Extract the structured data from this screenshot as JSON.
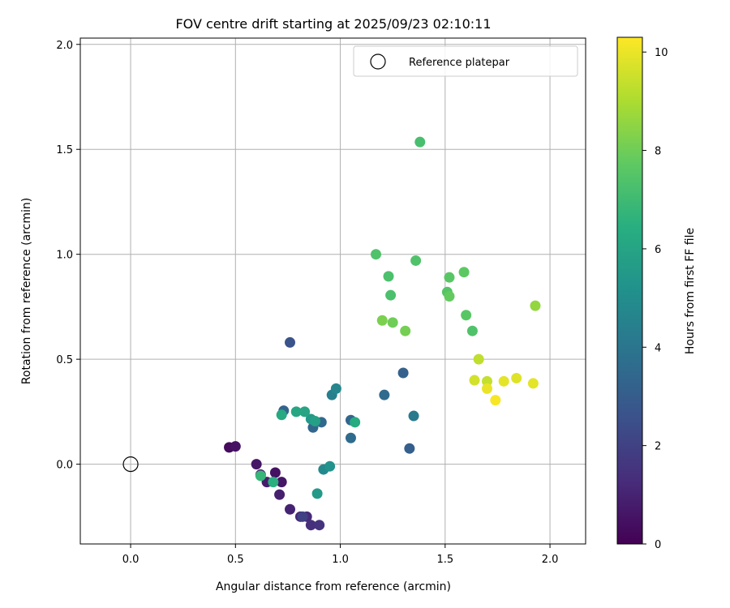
{
  "chart_data": {
    "type": "scatter",
    "title": "FOV centre drift starting at 2025/09/23 02:10:11",
    "xlabel": "Angular distance from reference (arcmin)",
    "ylabel": "Rotation from reference (arcmin)",
    "xlim": [
      -0.24,
      2.17
    ],
    "ylim": [
      -0.38,
      2.03
    ],
    "xticks": [
      0.0,
      0.5,
      1.0,
      1.5,
      2.0
    ],
    "xtick_labels": [
      "0.0",
      "0.5",
      "1.0",
      "1.5",
      "2.0"
    ],
    "yticks": [
      0.0,
      0.5,
      1.0,
      1.5,
      2.0
    ],
    "ytick_labels": [
      "0.0",
      "0.5",
      "1.0",
      "1.5",
      "2.0"
    ],
    "grid": true,
    "legend": {
      "position": "top-right",
      "entries": [
        "Reference platepar"
      ]
    },
    "reference_point": {
      "x": 0.0,
      "y": 0.0,
      "label": "Reference platepar",
      "marker": "open-circle"
    },
    "colorbar": {
      "label": "Hours from first FF file",
      "colormap": "viridis",
      "range": [
        0,
        10.3
      ],
      "ticks": [
        0,
        2,
        4,
        6,
        8,
        10
      ],
      "tick_labels": [
        "0",
        "2",
        "4",
        "6",
        "8",
        "10"
      ]
    },
    "points": [
      {
        "x": 0.47,
        "y": 0.08,
        "h": 0.3
      },
      {
        "x": 0.5,
        "y": 0.085,
        "h": 0.5
      },
      {
        "x": 0.6,
        "y": 0.0,
        "h": 0.6
      },
      {
        "x": 0.62,
        "y": -0.05,
        "h": 0.7
      },
      {
        "x": 0.65,
        "y": -0.085,
        "h": 0.8
      },
      {
        "x": 0.69,
        "y": -0.04,
        "h": 0.5
      },
      {
        "x": 0.72,
        "y": -0.085,
        "h": 0.6
      },
      {
        "x": 0.71,
        "y": -0.145,
        "h": 0.9
      },
      {
        "x": 0.76,
        "y": -0.215,
        "h": 1.0
      },
      {
        "x": 0.81,
        "y": -0.25,
        "h": 1.1
      },
      {
        "x": 0.84,
        "y": -0.25,
        "h": 1.2
      },
      {
        "x": 0.86,
        "y": -0.29,
        "h": 1.4
      },
      {
        "x": 0.9,
        "y": -0.29,
        "h": 1.5
      },
      {
        "x": 0.82,
        "y": -0.25,
        "h": 2.0
      },
      {
        "x": 0.76,
        "y": 0.58,
        "h": 2.6
      },
      {
        "x": 0.73,
        "y": 0.255,
        "h": 3.3
      },
      {
        "x": 0.87,
        "y": 0.175,
        "h": 3.4
      },
      {
        "x": 0.91,
        "y": 0.2,
        "h": 3.5
      },
      {
        "x": 1.05,
        "y": 0.21,
        "h": 3.4
      },
      {
        "x": 1.05,
        "y": 0.125,
        "h": 3.6
      },
      {
        "x": 1.21,
        "y": 0.33,
        "h": 3.6
      },
      {
        "x": 1.3,
        "y": 0.435,
        "h": 3.2
      },
      {
        "x": 1.33,
        "y": 0.075,
        "h": 3.1
      },
      {
        "x": 1.35,
        "y": 0.23,
        "h": 4.2
      },
      {
        "x": 0.96,
        "y": 0.33,
        "h": 4.4
      },
      {
        "x": 0.98,
        "y": 0.36,
        "h": 4.7
      },
      {
        "x": 0.92,
        "y": -0.025,
        "h": 4.8
      },
      {
        "x": 0.95,
        "y": -0.01,
        "h": 5.2
      },
      {
        "x": 0.89,
        "y": -0.14,
        "h": 5.5
      },
      {
        "x": 0.86,
        "y": 0.215,
        "h": 5.5
      },
      {
        "x": 0.88,
        "y": 0.205,
        "h": 5.8
      },
      {
        "x": 0.83,
        "y": 0.25,
        "h": 6.0
      },
      {
        "x": 0.79,
        "y": 0.25,
        "h": 6.1
      },
      {
        "x": 0.72,
        "y": 0.235,
        "h": 6.2
      },
      {
        "x": 1.07,
        "y": 0.2,
        "h": 6.3
      },
      {
        "x": 0.68,
        "y": -0.085,
        "h": 6.5
      },
      {
        "x": 0.62,
        "y": -0.055,
        "h": 6.8
      },
      {
        "x": 1.38,
        "y": 1.535,
        "h": 7.2
      },
      {
        "x": 1.17,
        "y": 1.0,
        "h": 7.4
      },
      {
        "x": 1.23,
        "y": 0.895,
        "h": 7.3
      },
      {
        "x": 1.36,
        "y": 0.97,
        "h": 7.4
      },
      {
        "x": 1.24,
        "y": 0.805,
        "h": 7.3
      },
      {
        "x": 1.52,
        "y": 0.89,
        "h": 7.6
      },
      {
        "x": 1.59,
        "y": 0.915,
        "h": 7.7
      },
      {
        "x": 1.51,
        "y": 0.82,
        "h": 7.5
      },
      {
        "x": 1.52,
        "y": 0.8,
        "h": 7.8
      },
      {
        "x": 1.6,
        "y": 0.71,
        "h": 7.6
      },
      {
        "x": 1.63,
        "y": 0.635,
        "h": 7.4
      },
      {
        "x": 1.2,
        "y": 0.685,
        "h": 8.2
      },
      {
        "x": 1.25,
        "y": 0.675,
        "h": 8.0
      },
      {
        "x": 1.31,
        "y": 0.635,
        "h": 8.1
      },
      {
        "x": 1.93,
        "y": 0.755,
        "h": 8.6
      },
      {
        "x": 1.66,
        "y": 0.5,
        "h": 9.3
      },
      {
        "x": 1.64,
        "y": 0.4,
        "h": 9.6
      },
      {
        "x": 1.7,
        "y": 0.395,
        "h": 9.4
      },
      {
        "x": 1.7,
        "y": 0.36,
        "h": 10.0
      },
      {
        "x": 1.74,
        "y": 0.305,
        "h": 10.2
      },
      {
        "x": 1.78,
        "y": 0.395,
        "h": 9.9
      },
      {
        "x": 1.84,
        "y": 0.41,
        "h": 9.8
      },
      {
        "x": 1.92,
        "y": 0.385,
        "h": 9.9
      }
    ]
  }
}
